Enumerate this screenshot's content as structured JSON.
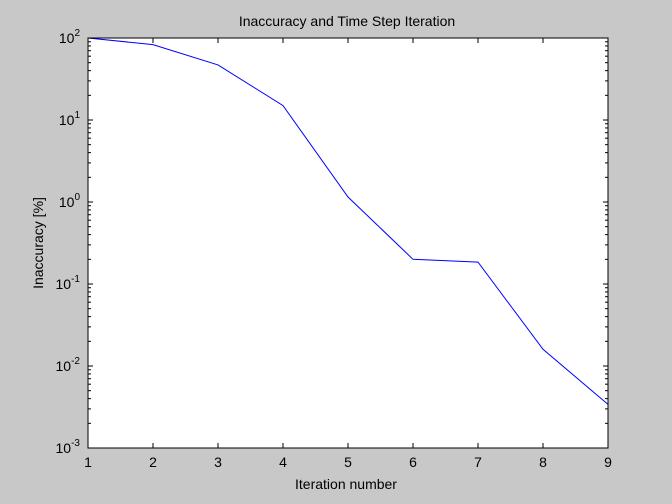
{
  "figure": {
    "background": "#c8c8c8",
    "axes_background": "#ffffff",
    "line_color": "#0000ff"
  },
  "chart_data": {
    "type": "line",
    "title": "Inaccuracy and Time Step Iteration",
    "xlabel": "Iteration number",
    "ylabel": "Inaccuracy [%]",
    "xlim": [
      1,
      9
    ],
    "ylim": [
      0.001,
      100
    ],
    "yscale": "log",
    "grid": false,
    "x_ticks": [
      {
        "value": 1,
        "label": "1"
      },
      {
        "value": 2,
        "label": "2"
      },
      {
        "value": 3,
        "label": "3"
      },
      {
        "value": 4,
        "label": "4"
      },
      {
        "value": 5,
        "label": "5"
      },
      {
        "value": 6,
        "label": "6"
      },
      {
        "value": 7,
        "label": "7"
      },
      {
        "value": 8,
        "label": "8"
      },
      {
        "value": 9,
        "label": "9"
      }
    ],
    "y_ticks": [
      {
        "value": 100,
        "base": "10",
        "exp": "2"
      },
      {
        "value": 10,
        "base": "10",
        "exp": "1"
      },
      {
        "value": 1,
        "base": "10",
        "exp": "0"
      },
      {
        "value": 0.1,
        "base": "10",
        "exp": "-1"
      },
      {
        "value": 0.01,
        "base": "10",
        "exp": "-2"
      },
      {
        "value": 0.001,
        "base": "10",
        "exp": "-3"
      }
    ],
    "series": [
      {
        "color": "#0000ff",
        "x": [
          1,
          2,
          3,
          4,
          5,
          6,
          7,
          8,
          9
        ],
        "y": [
          100,
          83,
          47,
          15,
          1.15,
          0.2,
          0.185,
          0.016,
          0.0034
        ]
      }
    ]
  }
}
